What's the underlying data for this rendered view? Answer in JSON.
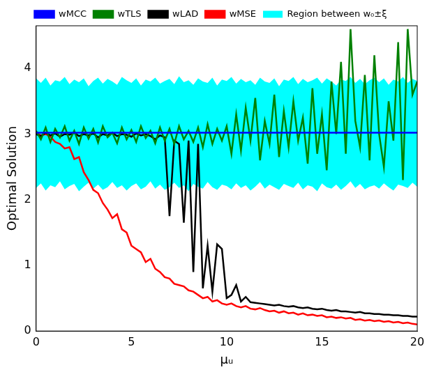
{
  "chart_data": {
    "type": "line",
    "x_label": "μᵤ",
    "y_label": "Optimal Solution",
    "xlim": [
      0,
      20
    ],
    "xticks": [
      0,
      5,
      10,
      15,
      20
    ],
    "ylim": [
      0,
      4.65
    ],
    "yticks": [
      0,
      1,
      2,
      3,
      4
    ],
    "grid": false,
    "legend": "top",
    "x": [
      0,
      0.25,
      0.5,
      0.75,
      1,
      1.25,
      1.5,
      1.75,
      2,
      2.25,
      2.5,
      2.75,
      3,
      3.25,
      3.5,
      3.75,
      4,
      4.25,
      4.5,
      4.75,
      5,
      5.25,
      5.5,
      5.75,
      6,
      6.25,
      6.5,
      6.75,
      7,
      7.25,
      7.5,
      7.75,
      8,
      8.25,
      8.5,
      8.75,
      9,
      9.25,
      9.5,
      9.75,
      10,
      10.25,
      10.5,
      10.75,
      11,
      11.25,
      11.5,
      11.75,
      12,
      12.25,
      12.5,
      12.75,
      13,
      13.25,
      13.5,
      13.75,
      14,
      14.25,
      14.5,
      14.75,
      15,
      15.25,
      15.5,
      15.75,
      16,
      16.25,
      16.5,
      16.75,
      17,
      17.25,
      17.5,
      17.75,
      18,
      18.25,
      18.5,
      18.75,
      19,
      19.25,
      19.5,
      19.75,
      20
    ],
    "series": [
      {
        "name": "Region between w₀±ξ",
        "type": "band",
        "color": "#00ffff",
        "lower": [
          2.18,
          2.25,
          2.14,
          2.22,
          2.19,
          2.28,
          2.16,
          2.21,
          2.24,
          2.13,
          2.2,
          2.26,
          2.17,
          2.23,
          2.15,
          2.19,
          2.27,
          2.18,
          2.22,
          2.14,
          2.21,
          2.25,
          2.16,
          2.2,
          2.28,
          2.17,
          2.23,
          2.15,
          2.19,
          2.26,
          2.18,
          2.22,
          2.13,
          2.24,
          2.2,
          2.17,
          2.27,
          2.19,
          2.15,
          2.23,
          2.21,
          2.16,
          2.25,
          2.18,
          2.22,
          2.14,
          2.2,
          2.27,
          2.17,
          2.23,
          2.19,
          2.15,
          2.24,
          2.21,
          2.18,
          2.26,
          2.16,
          2.22,
          2.2,
          2.13,
          2.25,
          2.19,
          2.17,
          2.23,
          2.15,
          2.21,
          2.28,
          2.18,
          2.24,
          2.16,
          2.2,
          2.22,
          2.17,
          2.25,
          2.19,
          2.14,
          2.23,
          2.21,
          2.18,
          2.26,
          2.2
        ],
        "upper": [
          3.85,
          3.78,
          3.86,
          3.74,
          3.82,
          3.8,
          3.87,
          3.76,
          3.83,
          3.79,
          3.85,
          3.73,
          3.81,
          3.86,
          3.77,
          3.84,
          3.8,
          3.75,
          3.87,
          3.82,
          3.78,
          3.85,
          3.74,
          3.83,
          3.8,
          3.86,
          3.77,
          3.81,
          3.84,
          3.76,
          3.88,
          3.79,
          3.82,
          3.75,
          3.85,
          3.8,
          3.78,
          3.86,
          3.74,
          3.83,
          3.81,
          3.87,
          3.77,
          3.84,
          3.79,
          3.82,
          3.75,
          3.86,
          3.8,
          3.78,
          3.85,
          3.73,
          3.83,
          3.81,
          3.87,
          3.76,
          3.84,
          3.79,
          3.82,
          3.86,
          3.77,
          3.85,
          3.8,
          3.74,
          3.83,
          3.81,
          3.87,
          3.78,
          3.84,
          3.76,
          3.82,
          3.86,
          3.79,
          3.85,
          3.75,
          3.83,
          3.8,
          3.87,
          3.78,
          3.84,
          3.81
        ]
      },
      {
        "name": "wMSE",
        "color": "#ff0000",
        "values": [
          3.02,
          2.98,
          3.0,
          2.96,
          2.88,
          2.85,
          2.78,
          2.8,
          2.62,
          2.65,
          2.42,
          2.3,
          2.15,
          2.1,
          1.95,
          1.85,
          1.72,
          1.78,
          1.55,
          1.5,
          1.3,
          1.25,
          1.2,
          1.05,
          1.1,
          0.95,
          0.9,
          0.82,
          0.8,
          0.72,
          0.7,
          0.68,
          0.62,
          0.6,
          0.55,
          0.5,
          0.52,
          0.45,
          0.47,
          0.42,
          0.4,
          0.42,
          0.38,
          0.36,
          0.38,
          0.34,
          0.33,
          0.35,
          0.32,
          0.3,
          0.31,
          0.28,
          0.3,
          0.27,
          0.28,
          0.25,
          0.27,
          0.24,
          0.25,
          0.23,
          0.24,
          0.21,
          0.22,
          0.2,
          0.21,
          0.19,
          0.2,
          0.17,
          0.18,
          0.16,
          0.17,
          0.15,
          0.16,
          0.14,
          0.15,
          0.13,
          0.14,
          0.12,
          0.13,
          0.11,
          0.1
        ]
      },
      {
        "name": "wLAD",
        "color": "#000000",
        "values": [
          3.0,
          2.97,
          3.02,
          2.98,
          3.01,
          2.96,
          3.0,
          2.99,
          3.02,
          2.97,
          3.0,
          2.98,
          3.01,
          2.95,
          3.0,
          2.98,
          3.02,
          2.97,
          3.0,
          2.99,
          2.96,
          3.01,
          2.98,
          3.0,
          2.97,
          2.92,
          2.98,
          2.95,
          1.75,
          2.9,
          2.85,
          1.65,
          2.9,
          0.9,
          2.85,
          0.65,
          1.3,
          0.6,
          1.32,
          1.25,
          0.5,
          0.55,
          0.7,
          0.45,
          0.52,
          0.44,
          0.43,
          0.42,
          0.41,
          0.4,
          0.39,
          0.4,
          0.38,
          0.37,
          0.38,
          0.36,
          0.35,
          0.36,
          0.34,
          0.33,
          0.34,
          0.32,
          0.31,
          0.32,
          0.3,
          0.3,
          0.29,
          0.28,
          0.29,
          0.27,
          0.27,
          0.26,
          0.26,
          0.25,
          0.25,
          0.24,
          0.24,
          0.23,
          0.23,
          0.22,
          0.22
        ]
      },
      {
        "name": "wTLS",
        "color": "#008000",
        "values": [
          3.05,
          2.92,
          3.1,
          2.88,
          3.08,
          2.95,
          3.12,
          2.9,
          3.05,
          2.85,
          3.1,
          2.93,
          3.08,
          2.87,
          3.12,
          2.95,
          3.02,
          2.86,
          3.1,
          2.92,
          3.06,
          2.88,
          3.12,
          2.94,
          3.05,
          2.86,
          3.1,
          2.9,
          3.08,
          2.85,
          3.12,
          2.92,
          3.05,
          2.88,
          3.1,
          2.8,
          3.15,
          2.85,
          3.08,
          2.9,
          3.12,
          2.7,
          3.3,
          2.75,
          3.4,
          2.9,
          3.55,
          2.6,
          3.2,
          2.85,
          3.6,
          2.65,
          3.35,
          2.8,
          3.5,
          2.9,
          3.25,
          2.55,
          3.7,
          2.7,
          3.3,
          2.45,
          3.8,
          3.0,
          4.1,
          2.7,
          4.6,
          3.2,
          2.8,
          3.9,
          2.6,
          4.2,
          3.0,
          2.5,
          3.5,
          2.9,
          4.4,
          2.3,
          4.6,
          3.6,
          3.8
        ]
      },
      {
        "name": "wMCC",
        "color": "#0000ff",
        "values": [
          3.02,
          3.02,
          3.02,
          3.02,
          3.02,
          3.02,
          3.02,
          3.02,
          3.02,
          3.02,
          3.02,
          3.02,
          3.02,
          3.02,
          3.02,
          3.02,
          3.02,
          3.02,
          3.02,
          3.02,
          3.02,
          3.02,
          3.02,
          3.02,
          3.02,
          3.02,
          3.02,
          3.02,
          3.02,
          3.02,
          3.02,
          3.02,
          3.02,
          3.02,
          3.02,
          3.02,
          3.02,
          3.02,
          3.02,
          3.02,
          3.02,
          3.02,
          3.02,
          3.02,
          3.02,
          3.02,
          3.02,
          3.02,
          3.02,
          3.02,
          3.02,
          3.02,
          3.02,
          3.02,
          3.02,
          3.02,
          3.02,
          3.02,
          3.02,
          3.02,
          3.02,
          3.02,
          3.02,
          3.02,
          3.02,
          3.02,
          3.02,
          3.02,
          3.02,
          3.02,
          3.02,
          3.02,
          3.02,
          3.02,
          3.02,
          3.02,
          3.02,
          3.02,
          3.02,
          3.02,
          3.02
        ]
      }
    ]
  }
}
